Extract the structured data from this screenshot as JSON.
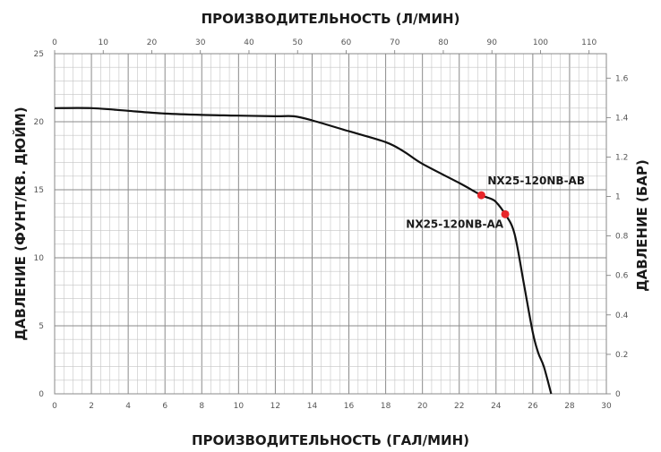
{
  "chart_data": {
    "type": "line",
    "title": "",
    "x_bottom_label": "ПРОИЗВОДИТЕЛЬНОСТЬ (ГАЛ/МИН)",
    "x_top_label": "ПРОИЗВОДИТЕЛЬНОСТЬ (Л/МИН)",
    "y_left_label": "ДАВЛЕНИЕ (ФУНТ/КВ. ДЮЙМ)",
    "y_right_label": "ДАВЛЕНИЕ (БАР)",
    "x_bottom_range": [
      0,
      30
    ],
    "x_bottom_ticks": [
      "0",
      "2",
      "4",
      "6",
      "8",
      "10",
      "12",
      "14",
      "16",
      "18",
      "20",
      "22",
      "24",
      "26",
      "28",
      "30"
    ],
    "x_top_range": [
      0,
      113.56
    ],
    "x_top_ticks": [
      "0",
      "10",
      "20",
      "30",
      "40",
      "50",
      "60",
      "70",
      "80",
      "90",
      "100",
      "110"
    ],
    "y_left_range": [
      0,
      25
    ],
    "y_left_ticks": [
      "0",
      "5",
      "10",
      "15",
      "20",
      "25"
    ],
    "y_right_range": [
      0,
      1.7237
    ],
    "y_right_ticks": [
      "0",
      "0.2",
      "0.4",
      "0.6",
      "0.8",
      "1",
      "1.2",
      "1.4",
      "1.6"
    ],
    "grid": true,
    "series": [
      {
        "color": "#111111",
        "x": [
          0,
          2,
          4,
          6,
          8,
          10,
          12,
          13,
          14,
          16,
          18,
          19,
          20,
          22,
          23.2,
          23.7,
          24,
          24.5,
          25,
          25.5,
          26,
          26.3,
          26.6,
          27
        ],
        "y": [
          21,
          21,
          20.8,
          20.6,
          20.5,
          20.45,
          20.4,
          20.4,
          20.1,
          19.3,
          18.5,
          17.8,
          16.9,
          15.5,
          14.6,
          14.35,
          14.1,
          13.2,
          11.8,
          8.2,
          4.5,
          3,
          2,
          0
        ]
      }
    ],
    "points": [
      {
        "label": "NX25-120NB-AB",
        "x": 23.2,
        "y": 14.6,
        "color": "#e8262a"
      },
      {
        "label": "NX25-120NB-AA",
        "x": 24.5,
        "y": 13.2,
        "color": "#e8262a"
      }
    ]
  }
}
